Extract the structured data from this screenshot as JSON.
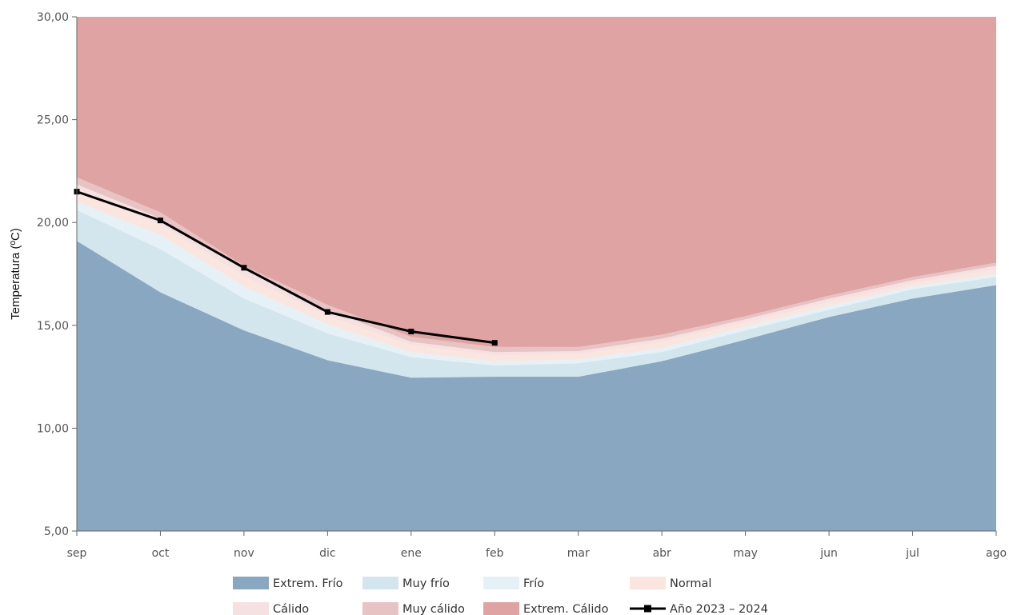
{
  "chart_data": {
    "type": "area",
    "ylabel": "Temperatura (ºC)",
    "xlabel": "",
    "ylim": [
      5,
      30
    ],
    "y_ticks": [
      5,
      10,
      15,
      20,
      25,
      30
    ],
    "y_tick_labels": [
      "5,00",
      "10,00",
      "15,00",
      "20,00",
      "25,00",
      "30,00"
    ],
    "categories": [
      "sep",
      "oct",
      "nov",
      "dic",
      "ene",
      "feb",
      "mar",
      "abr",
      "may",
      "jun",
      "jul",
      "ago"
    ],
    "grid": false,
    "legend_position": "bottom",
    "bands": [
      {
        "name": "Extrem. Frío",
        "color": "#8aa7c2",
        "upper": [
          19.1,
          16.6,
          14.75,
          13.3,
          12.45,
          12.5,
          12.5,
          13.25,
          14.3,
          15.4,
          16.3,
          16.95
        ]
      },
      {
        "name": "Muy frío",
        "color": "#d4e6ed",
        "upper": [
          20.6,
          18.7,
          16.3,
          14.6,
          13.45,
          13.05,
          13.15,
          13.7,
          14.75,
          15.75,
          16.75,
          17.35
        ]
      },
      {
        "name": "Frío",
        "color": "#e6f1f7",
        "upper": [
          21.0,
          19.4,
          16.9,
          15.05,
          13.7,
          13.25,
          13.35,
          13.9,
          14.95,
          15.95,
          16.9,
          17.5
        ]
      },
      {
        "name": "Normal",
        "color": "#fbe6df",
        "upper": [
          21.6,
          19.9,
          17.4,
          15.45,
          14.05,
          13.55,
          13.6,
          14.2,
          15.15,
          16.15,
          17.05,
          17.75
        ]
      },
      {
        "name": "Cálido",
        "color": "#f5e1e2",
        "upper": [
          21.85,
          20.2,
          17.7,
          15.75,
          14.2,
          13.7,
          13.75,
          14.35,
          15.3,
          16.3,
          17.2,
          17.9
        ]
      },
      {
        "name": "Muy cálido",
        "color": "#e8c3c3",
        "upper": [
          22.2,
          20.5,
          17.9,
          16.0,
          14.45,
          13.95,
          13.95,
          14.55,
          15.45,
          16.45,
          17.35,
          18.05
        ]
      },
      {
        "name": "Extrem. Cálido",
        "color": "#e0a3a3",
        "upper": [
          23.4,
          21.0,
          18.6,
          16.6,
          15.0,
          14.5,
          14.35,
          15.0,
          16.05,
          17.05,
          17.95,
          18.6
        ],
        "lower_of_next": true
      }
    ],
    "top_fill_color": "#e0a3a3",
    "series": [
      {
        "name": "Año 2023 - 2024",
        "color": "#000000",
        "values": [
          21.5,
          20.1,
          17.8,
          15.65,
          14.7,
          14.15,
          null,
          null,
          null,
          null,
          null,
          null
        ]
      }
    ],
    "legend": [
      {
        "name": "Extrem. Frío",
        "color": "#8aa7c2",
        "type": "area"
      },
      {
        "name": "Muy frío",
        "color": "#d4e6ed",
        "type": "area"
      },
      {
        "name": "Frío",
        "color": "#e6f1f7",
        "type": "area"
      },
      {
        "name": "Normal",
        "color": "#fbe6df",
        "type": "area"
      },
      {
        "name": "Cálido",
        "color": "#f5e1e2",
        "type": "area"
      },
      {
        "name": "Muy cálido",
        "color": "#e8c3c3",
        "type": "area"
      },
      {
        "name": "Extrem. Cálido",
        "color": "#e0a3a3",
        "type": "area"
      },
      {
        "name": "Año 2023 – 2024",
        "color": "#000000",
        "type": "line"
      }
    ]
  }
}
